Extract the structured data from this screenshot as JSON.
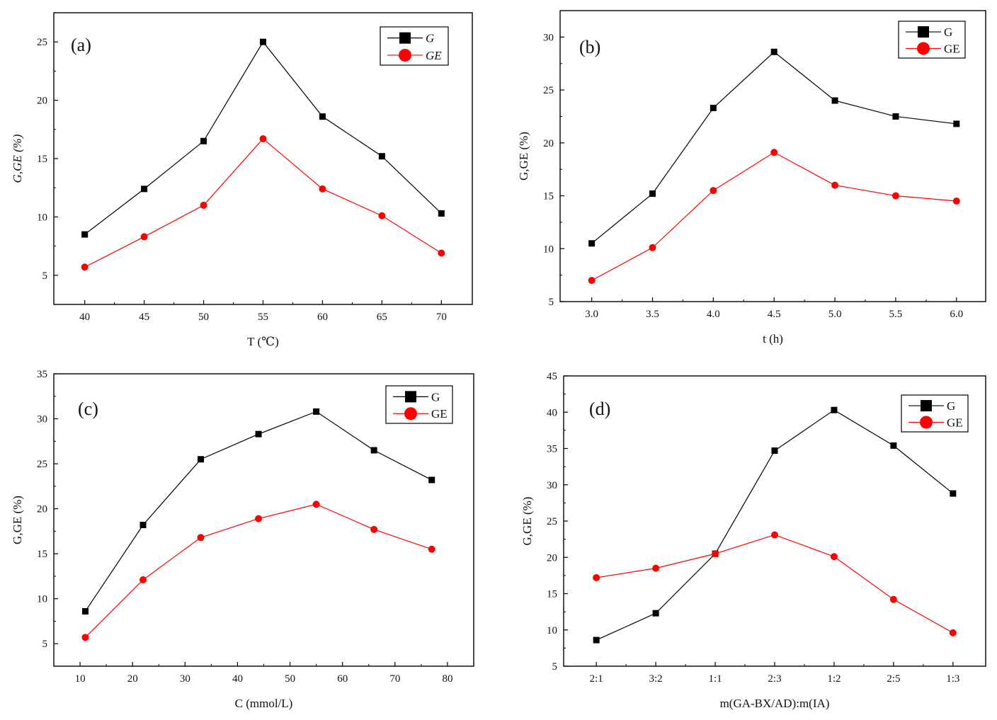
{
  "colors": {
    "G": "#000000",
    "GE": "#ff0000",
    "axis": "#000000"
  },
  "chart_data": [
    {
      "id": "a",
      "type": "line",
      "panel_label": "(a)",
      "xlabel": "T (℃)",
      "ylabel": "G,GE (%)",
      "ylabel_italic": true,
      "legend_italic": true,
      "x": [
        40,
        45,
        50,
        55,
        60,
        65,
        70
      ],
      "xlim": [
        37.4,
        72.6
      ],
      "ylim": [
        2.5,
        27.5
      ],
      "xticks": [
        40,
        45,
        50,
        55,
        60,
        65,
        70
      ],
      "xtick_labels": [
        "40",
        "45",
        "50",
        "55",
        "60",
        "65",
        "70"
      ],
      "yticks": [
        5,
        10,
        15,
        20,
        25
      ],
      "ytick_labels": [
        "5",
        "10",
        "15",
        "20",
        "25"
      ],
      "legend_position": "top-right",
      "series": [
        {
          "name": "G",
          "marker": "square",
          "values": [
            8.5,
            12.4,
            16.5,
            25.0,
            18.6,
            15.2,
            10.3
          ]
        },
        {
          "name": "GE",
          "marker": "circle",
          "values": [
            5.7,
            8.3,
            11.0,
            16.7,
            12.4,
            10.1,
            6.9
          ]
        }
      ]
    },
    {
      "id": "b",
      "type": "line",
      "panel_label": "(b)",
      "xlabel": "t (h)",
      "ylabel": "G,GE (%)",
      "ylabel_italic": false,
      "legend_italic": false,
      "x": [
        3.0,
        3.5,
        4.0,
        4.5,
        5.0,
        5.5,
        6.0
      ],
      "xlim": [
        2.74,
        6.24
      ],
      "ylim": [
        5,
        32.5
      ],
      "xticks": [
        3.0,
        3.5,
        4.0,
        4.5,
        5.0,
        5.5,
        6.0
      ],
      "xtick_labels": [
        "3.0",
        "3.5",
        "4.0",
        "4.5",
        "5.0",
        "5.5",
        "6.0"
      ],
      "yticks": [
        5,
        10,
        15,
        20,
        25,
        30
      ],
      "ytick_labels": [
        "5",
        "10",
        "15",
        "20",
        "25",
        "30"
      ],
      "legend_position": "top-right",
      "series": [
        {
          "name": "G",
          "marker": "square",
          "values": [
            10.5,
            15.2,
            23.3,
            28.6,
            24.0,
            22.5,
            21.8
          ]
        },
        {
          "name": "GE",
          "marker": "circle",
          "values": [
            7.0,
            10.1,
            15.5,
            19.1,
            16.0,
            15.0,
            14.5
          ]
        }
      ]
    },
    {
      "id": "c",
      "type": "line",
      "panel_label": "(c)",
      "xlabel": "C (mmol/L)",
      "ylabel": "G,GE (%)",
      "ylabel_italic": false,
      "legend_italic": false,
      "x": [
        11,
        22,
        33,
        44,
        55,
        66,
        77
      ],
      "xlim": [
        5,
        85
      ],
      "ylim": [
        2.5,
        35
      ],
      "xticks": [
        10,
        20,
        30,
        40,
        50,
        60,
        70,
        80
      ],
      "xtick_labels": [
        "10",
        "20",
        "30",
        "40",
        "50",
        "60",
        "70",
        "80"
      ],
      "yticks": [
        5,
        10,
        15,
        20,
        25,
        30,
        35
      ],
      "ytick_labels": [
        "5",
        "10",
        "15",
        "20",
        "25",
        "30",
        "35"
      ],
      "legend_position": "top-right",
      "series": [
        {
          "name": "G",
          "marker": "square",
          "values": [
            8.6,
            18.2,
            25.5,
            28.3,
            30.8,
            26.5,
            23.2
          ]
        },
        {
          "name": "GE",
          "marker": "circle",
          "values": [
            5.7,
            12.1,
            16.8,
            18.9,
            20.5,
            17.7,
            15.5
          ]
        }
      ]
    },
    {
      "id": "d",
      "type": "line",
      "panel_label": "(d)",
      "xlabel": "m(GA-BX/AD):m(IA)",
      "ylabel": "G,GE (%)",
      "ylabel_italic": false,
      "legend_italic": false,
      "x": [
        0,
        1,
        2,
        3,
        4,
        5,
        6
      ],
      "xlim": [
        -0.55,
        6.55
      ],
      "ylim": [
        5,
        45
      ],
      "xticks": [
        0,
        1,
        2,
        3,
        4,
        5,
        6
      ],
      "xtick_labels": [
        "2:1",
        "3:2",
        "1:1",
        "2:3",
        "1:2",
        "2:5",
        "1:3"
      ],
      "yticks": [
        5,
        10,
        15,
        20,
        25,
        30,
        35,
        40,
        45
      ],
      "ytick_labels": [
        "5",
        "10",
        "15",
        "20",
        "25",
        "30",
        "35",
        "40",
        "45"
      ],
      "legend_position": "top-right",
      "series": [
        {
          "name": "G",
          "marker": "square",
          "values": [
            8.6,
            12.3,
            20.5,
            34.7,
            40.3,
            35.4,
            28.8
          ]
        },
        {
          "name": "GE",
          "marker": "circle",
          "values": [
            17.2,
            18.5,
            20.5,
            23.1,
            20.1,
            14.2,
            9.6
          ]
        }
      ]
    }
  ]
}
